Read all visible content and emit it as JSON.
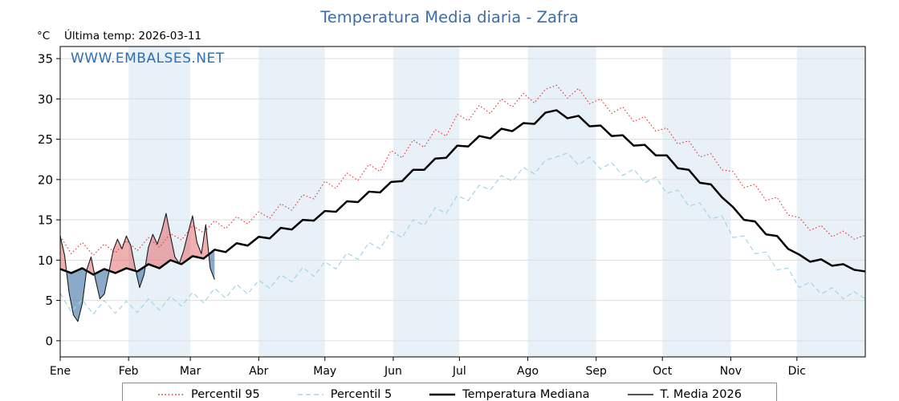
{
  "chart_data": {
    "type": "line",
    "title": "Temperatura Media diaria - Zafra",
    "subtitle": "Última temp: 2026-03-11",
    "unit_label": "°C",
    "ylabel": "°C",
    "xlabel": "",
    "watermark": "WWW.EMBALSES.NET",
    "x_months": [
      "Ene",
      "Feb",
      "Mar",
      "Abr",
      "May",
      "Jun",
      "Jul",
      "Ago",
      "Sep",
      "Oct",
      "Nov",
      "Dic"
    ],
    "month_starts": [
      0,
      31,
      59,
      90,
      120,
      151,
      181,
      212,
      243,
      273,
      304,
      334,
      365
    ],
    "yticks": [
      0,
      5,
      10,
      15,
      20,
      25,
      30,
      35
    ],
    "ylim": [
      -2,
      36.5
    ],
    "xlim": [
      0,
      365
    ],
    "grid": "horizontal",
    "legend_position": "bottom",
    "shaded_months": [
      1,
      3,
      5,
      7,
      9,
      11
    ],
    "band_color": "#e9f1f8",
    "grid_color": "#dddddd",
    "title_color": "#3c6ea5",
    "watermark_color": "#2d6fb0",
    "fill_above_color": "rgba(222,80,80,0.45)",
    "fill_below_color": "rgba(62,113,166,0.60)",
    "series": [
      {
        "key": "p95",
        "name": "Percentil 95",
        "color": "#e03535",
        "style": "dotted",
        "width": 1.1,
        "day_start": 0,
        "day_step": 5,
        "values": [
          13.0,
          10.8,
          12.2,
          10.6,
          12.0,
          10.9,
          12.4,
          11.2,
          12.8,
          11.6,
          13.3,
          12.5,
          14.3,
          13.4,
          14.9,
          13.9,
          15.4,
          14.5,
          16.0,
          15.2,
          17.0,
          16.2,
          18.1,
          17.6,
          19.8,
          18.9,
          20.8,
          19.9,
          21.9,
          21.0,
          23.6,
          22.7,
          24.9,
          24.0,
          26.2,
          25.4,
          28.1,
          27.3,
          29.2,
          28.2,
          30.0,
          29.0,
          30.7,
          29.5,
          31.2,
          31.7,
          30.1,
          31.3,
          29.4,
          30.0,
          28.2,
          29.0,
          27.2,
          27.8,
          26.0,
          26.4,
          24.4,
          24.8,
          22.8,
          23.2,
          21.2,
          21.0,
          19.0,
          19.4,
          17.4,
          17.8,
          15.6,
          15.3,
          13.7,
          14.3,
          12.9,
          13.6,
          12.6,
          13.1
        ]
      },
      {
        "key": "p5",
        "name": "Percentil 5",
        "color": "#a3d3e8",
        "style": "dashed",
        "width": 1.2,
        "day_start": 0,
        "day_step": 5,
        "values": [
          5.9,
          3.6,
          5.1,
          3.3,
          5.0,
          3.4,
          4.9,
          3.5,
          5.2,
          3.8,
          5.5,
          4.3,
          6.0,
          4.7,
          6.5,
          5.3,
          7.0,
          5.8,
          7.5,
          6.5,
          8.2,
          7.3,
          9.1,
          8.0,
          9.8,
          8.9,
          10.9,
          10.1,
          12.2,
          11.4,
          13.6,
          12.8,
          15.0,
          14.3,
          16.5,
          15.8,
          18.0,
          17.4,
          19.3,
          18.7,
          20.5,
          19.8,
          21.5,
          20.7,
          22.4,
          22.8,
          23.3,
          21.8,
          22.8,
          21.3,
          22.1,
          20.5,
          21.3,
          19.6,
          20.3,
          18.3,
          18.7,
          16.7,
          17.1,
          15.1,
          15.5,
          12.8,
          13.0,
          10.8,
          11.0,
          8.8,
          9.0,
          6.6,
          7.3,
          5.8,
          6.6,
          5.2,
          6.1,
          5.2
        ]
      },
      {
        "key": "median",
        "name": "Temperatura Mediana",
        "color": "#000000",
        "style": "solid",
        "width": 2.5,
        "day_start": 0,
        "day_step": 5,
        "values": [
          8.9,
          8.4,
          9.0,
          8.2,
          8.9,
          8.4,
          9.0,
          8.6,
          9.5,
          9.0,
          10.0,
          9.5,
          10.5,
          10.2,
          11.3,
          11.0,
          12.1,
          11.8,
          12.9,
          12.7,
          14.0,
          13.8,
          15.0,
          14.9,
          16.1,
          16.0,
          17.3,
          17.2,
          18.5,
          18.4,
          19.7,
          19.8,
          21.2,
          21.2,
          22.6,
          22.7,
          24.2,
          24.1,
          25.4,
          25.1,
          26.3,
          26.0,
          27.0,
          26.9,
          28.3,
          28.6,
          27.6,
          27.9,
          26.6,
          26.7,
          25.4,
          25.5,
          24.2,
          24.3,
          23.0,
          23.0,
          21.4,
          21.2,
          19.6,
          19.4,
          17.8,
          16.6,
          15.0,
          14.8,
          13.2,
          13.0,
          11.4,
          10.7,
          9.8,
          10.1,
          9.3,
          9.5,
          8.8,
          8.6
        ]
      },
      {
        "key": "t2026",
        "name": "T. Media 2026",
        "color": "#1a1a1a",
        "style": "solid",
        "width": 1.1,
        "day_start": 0,
        "day_step": 2,
        "values": [
          13.0,
          10.6,
          6.0,
          3.2,
          2.4,
          4.6,
          8.8,
          10.4,
          7.6,
          5.2,
          5.8,
          8.4,
          11.2,
          12.6,
          11.4,
          13.0,
          11.8,
          9.0,
          6.6,
          8.2,
          11.6,
          13.2,
          12.0,
          13.6,
          15.8,
          13.0,
          10.4,
          9.6,
          11.2,
          13.4,
          15.5,
          12.2,
          10.8,
          14.4,
          9.0,
          7.6
        ]
      }
    ]
  }
}
